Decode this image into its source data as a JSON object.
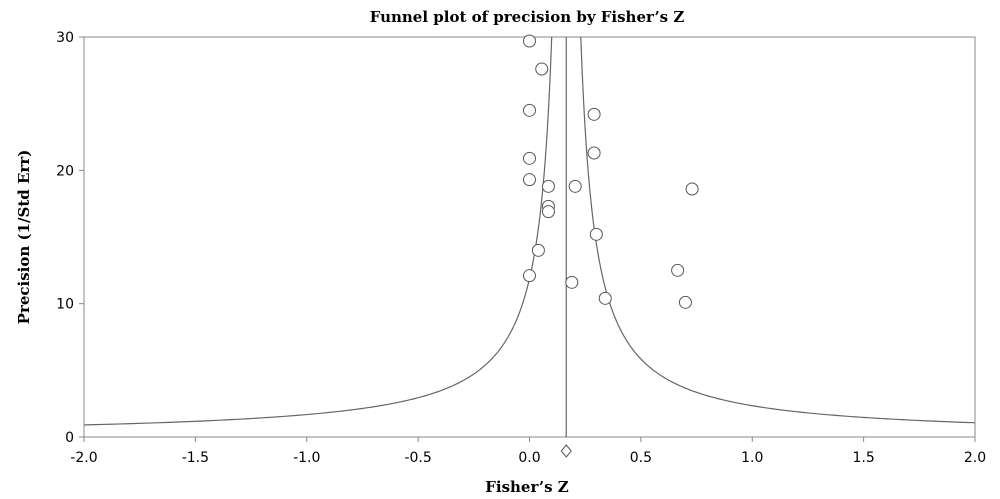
{
  "chart_data": {
    "type": "scatter",
    "title": "Funnel plot of precision by Fisher’s Z",
    "xlabel": "Fisher’s Z",
    "ylabel": "Precision (1/Std Err)",
    "xlim": [
      -2.0,
      2.0
    ],
    "ylim": [
      0,
      30
    ],
    "x_ticks": [
      "-2.0",
      "-1.5",
      "-1.0",
      "-0.5",
      "0.0",
      "0.5",
      "1.0",
      "1.5",
      "2.0"
    ],
    "y_ticks": [
      "0",
      "10",
      "20",
      "30"
    ],
    "grid": false,
    "points": [
      {
        "x": 0.0,
        "y": 29.7
      },
      {
        "x": 0.055,
        "y": 27.6
      },
      {
        "x": 0.0,
        "y": 24.5
      },
      {
        "x": 0.29,
        "y": 24.2
      },
      {
        "x": 0.29,
        "y": 21.3
      },
      {
        "x": 0.0,
        "y": 20.9
      },
      {
        "x": 0.0,
        "y": 19.3
      },
      {
        "x": 0.085,
        "y": 18.8
      },
      {
        "x": 0.205,
        "y": 18.8
      },
      {
        "x": 0.73,
        "y": 18.6
      },
      {
        "x": 0.085,
        "y": 17.3
      },
      {
        "x": 0.085,
        "y": 16.9
      },
      {
        "x": 0.3,
        "y": 15.2
      },
      {
        "x": 0.04,
        "y": 14.0
      },
      {
        "x": 0.665,
        "y": 12.5
      },
      {
        "x": 0.0,
        "y": 12.1
      },
      {
        "x": 0.19,
        "y": 11.6
      },
      {
        "x": 0.34,
        "y": 10.4
      },
      {
        "x": 0.7,
        "y": 10.1
      }
    ],
    "combined_effect": 0.165,
    "funnel_curves": true
  }
}
